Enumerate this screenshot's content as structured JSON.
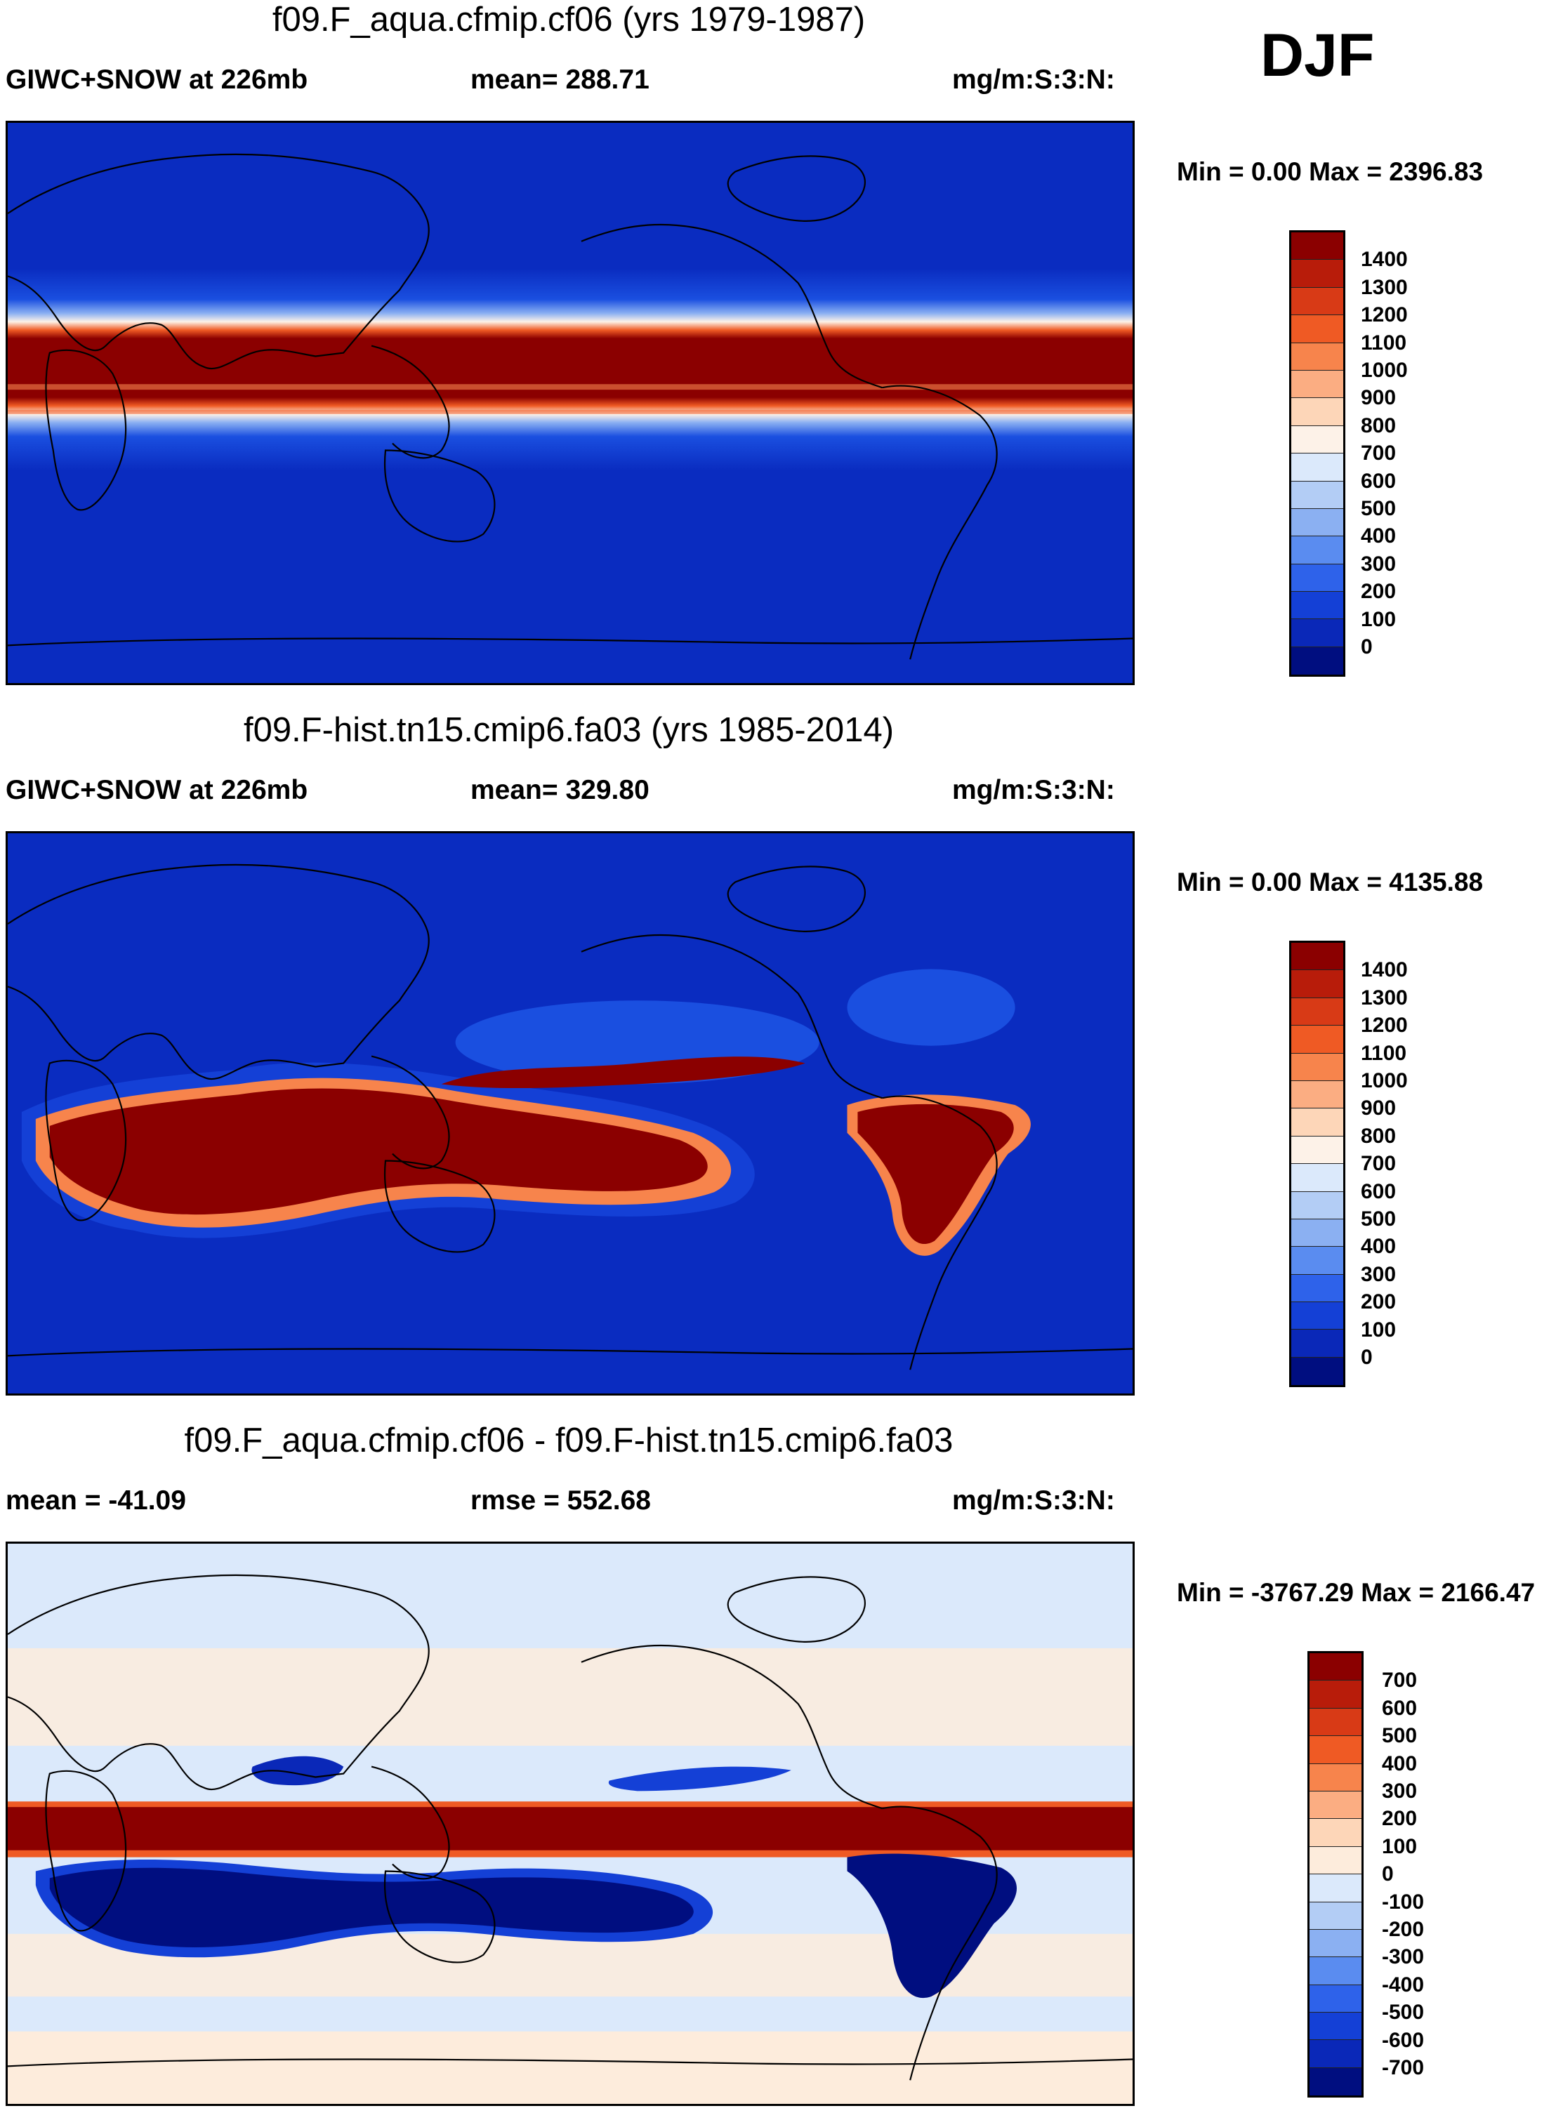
{
  "season": "DJF",
  "panels": [
    {
      "title": "f09.F_aqua.cfmip.cf06 (yrs 1979-1987)",
      "left_label": "GIWC+SNOW at 226mb",
      "mid_label": "mean= 288.71",
      "units": "mg/m:S:3:N:",
      "minmax": "Min =   0.00 Max = 2396.83",
      "colorbar_labels": [
        "1400",
        "1300",
        "1200",
        "1100",
        "1000",
        "900",
        "800",
        "700",
        "600",
        "500",
        "400",
        "300",
        "200",
        "100",
        "0"
      ],
      "colorbar_colors": [
        "#8b0000",
        "#b81c0a",
        "#d83a16",
        "#ef5a24",
        "#f7844c",
        "#fbad82",
        "#fdd6b8",
        "#fdf2e8",
        "#dbe9fb",
        "#b3cdf5",
        "#8bb0f2",
        "#5a8cf0",
        "#2e62ea",
        "#1440d6",
        "#0a28b8",
        "#000e80"
      ]
    },
    {
      "title": "f09.F-hist.tn15.cmip6.fa03 (yrs 1985-2014)",
      "left_label": "GIWC+SNOW at 226mb",
      "mid_label": "mean= 329.80",
      "units": "mg/m:S:3:N:",
      "minmax": "Min =   0.00 Max = 4135.88",
      "colorbar_labels": [
        "1400",
        "1300",
        "1200",
        "1100",
        "1000",
        "900",
        "800",
        "700",
        "600",
        "500",
        "400",
        "300",
        "200",
        "100",
        "0"
      ],
      "colorbar_colors": [
        "#8b0000",
        "#b81c0a",
        "#d83a16",
        "#ef5a24",
        "#f7844c",
        "#fbad82",
        "#fdd6b8",
        "#fdf2e8",
        "#dbe9fb",
        "#b3cdf5",
        "#8bb0f2",
        "#5a8cf0",
        "#2e62ea",
        "#1440d6",
        "#0a28b8",
        "#000e80"
      ]
    },
    {
      "title": "f09.F_aqua.cfmip.cf06 - f09.F-hist.tn15.cmip6.fa03",
      "left_label": "mean = -41.09",
      "mid_label": "rmse = 552.68",
      "units": "mg/m:S:3:N:",
      "minmax": "Min = -3767.29 Max = 2166.47",
      "colorbar_labels": [
        "700",
        "600",
        "500",
        "400",
        "300",
        "200",
        "100",
        "0",
        "-100",
        "-200",
        "-300",
        "-400",
        "-500",
        "-600",
        "-700"
      ],
      "colorbar_colors": [
        "#8b0000",
        "#b81c0a",
        "#d83a16",
        "#ef5a24",
        "#f7844c",
        "#fbad82",
        "#fdd6b8",
        "#fdecdc",
        "#dbe9fb",
        "#b3cdf5",
        "#8bb0f2",
        "#5a8cf0",
        "#2e62ea",
        "#1440d6",
        "#0a28b8",
        "#000e80"
      ]
    }
  ]
}
